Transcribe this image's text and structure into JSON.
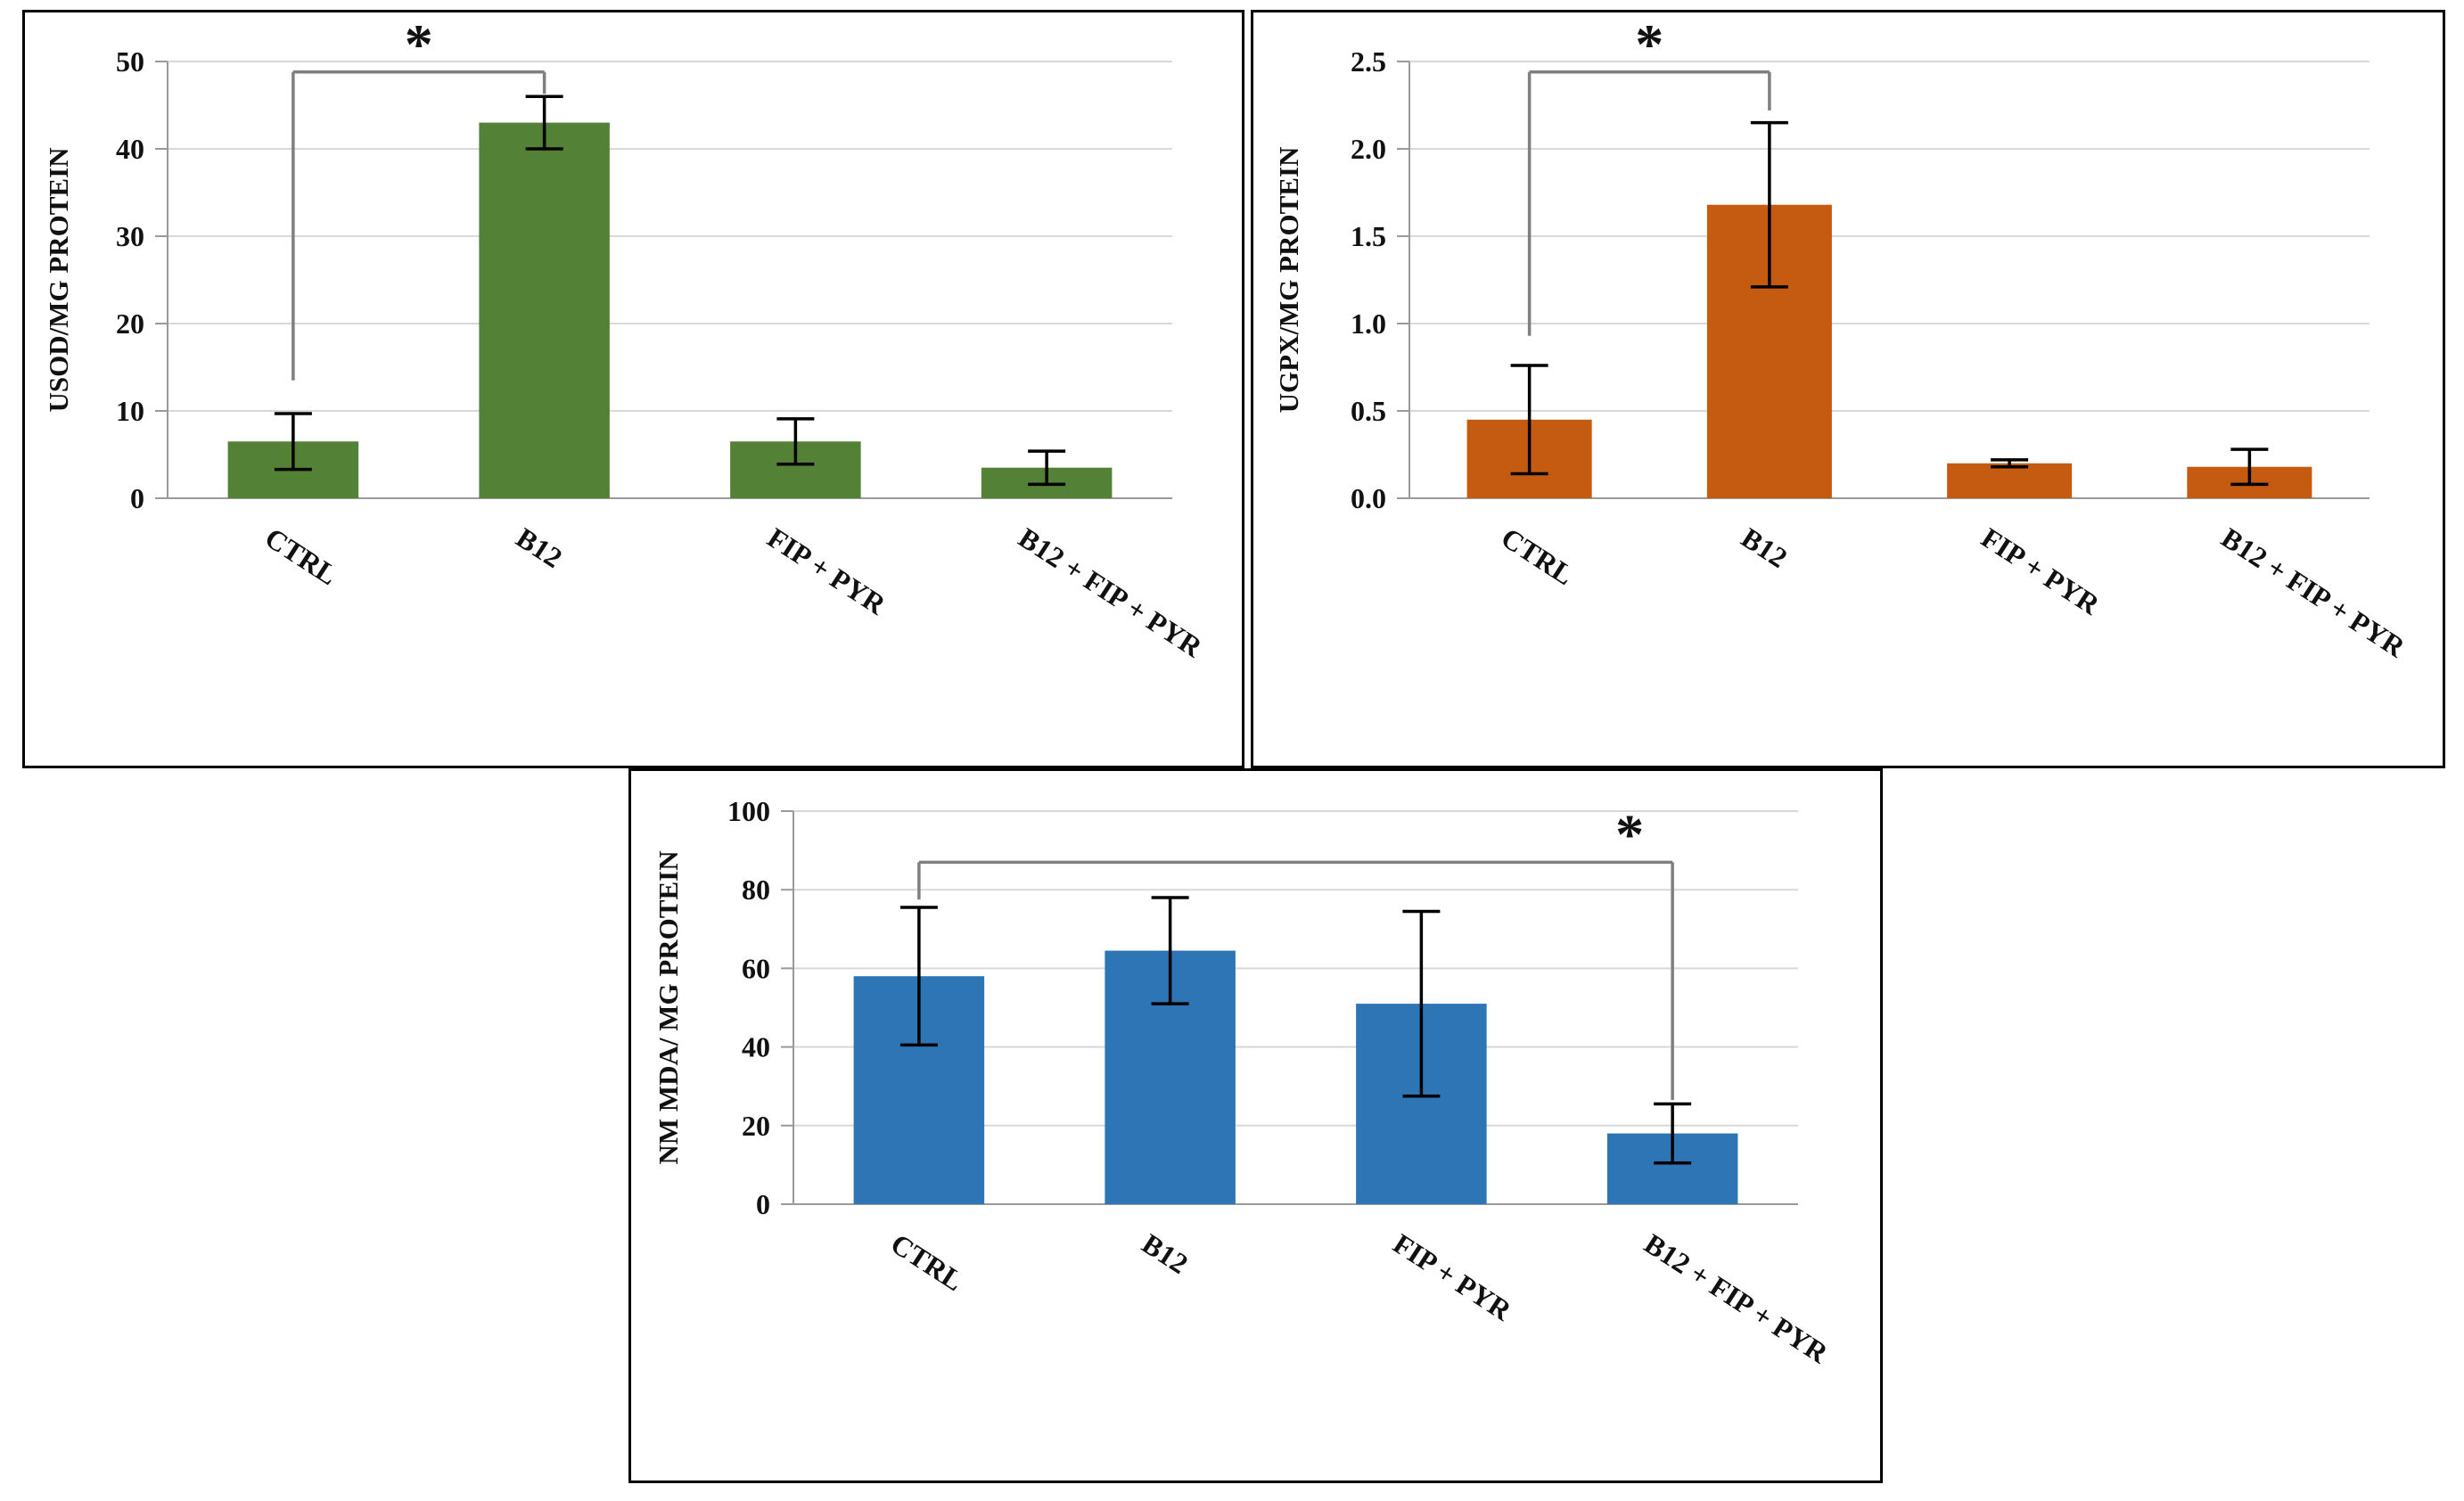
{
  "figure": {
    "description_labels": {
      "asterisk": "*"
    }
  },
  "chart_data": [
    {
      "id": "sod",
      "type": "bar",
      "title": "",
      "ylabel": "USOD/MG PROTEIN",
      "xlabel": "",
      "categories": [
        "CTRL",
        "B12",
        "FIP + PYR",
        "B12 + FIP + PYR"
      ],
      "values": [
        6.5,
        43,
        6.5,
        3.5
      ],
      "errors": [
        3.2,
        3.0,
        2.6,
        1.9
      ],
      "ylim": [
        0,
        50
      ],
      "ytick_step": 10,
      "ytick_decimals": 0,
      "grid": true,
      "legend": "none",
      "bar_color": "#538135",
      "significance": {
        "from": 0,
        "to": 1,
        "top": 48.8,
        "left_end": 13.5,
        "right_end": 46.3,
        "label": "*",
        "label_anchor": "center"
      }
    },
    {
      "id": "gpx",
      "type": "bar",
      "title": "",
      "ylabel": "UGPX/MG PROTEIN",
      "xlabel": "",
      "categories": [
        "CTRL",
        "B12",
        "FIP + PYR",
        "B12 + FIP + PYR"
      ],
      "values": [
        0.45,
        1.68,
        0.2,
        0.18
      ],
      "errors": [
        0.31,
        0.47,
        0.02,
        0.1
      ],
      "ylim": [
        0,
        2.5
      ],
      "ytick_step": 0.5,
      "ytick_decimals": 1,
      "grid": true,
      "legend": "none",
      "bar_color": "#C55A11",
      "significance": {
        "from": 0,
        "to": 1,
        "top": 2.44,
        "left_end": 0.93,
        "right_end": 2.22,
        "label": "*",
        "label_anchor": "center"
      }
    },
    {
      "id": "mda",
      "type": "bar",
      "title": "",
      "ylabel": "NM MDA/ MG PROTEIN",
      "xlabel": "",
      "categories": [
        "CTRL",
        "B12",
        "FIP + PYR",
        "B12 + FIP + PYR"
      ],
      "values": [
        58,
        64.5,
        51,
        18
      ],
      "errors": [
        17.5,
        13.5,
        23.5,
        7.5
      ],
      "ylim": [
        0,
        100
      ],
      "ytick_step": 20,
      "ytick_decimals": 0,
      "grid": true,
      "legend": "none",
      "bar_color": "#2E75B6",
      "significance": {
        "from": 0,
        "to": 3,
        "top": 87,
        "left_end": 77.5,
        "right_end": 26.5,
        "label": "*",
        "label_anchor": "right"
      }
    }
  ],
  "style": {
    "gridline_color": "#d9d9d9",
    "axis_color": "#9a9a9a",
    "error_bar_color": "#000000",
    "bracket_color": "#7f7f7f",
    "text_color": "#111111"
  }
}
